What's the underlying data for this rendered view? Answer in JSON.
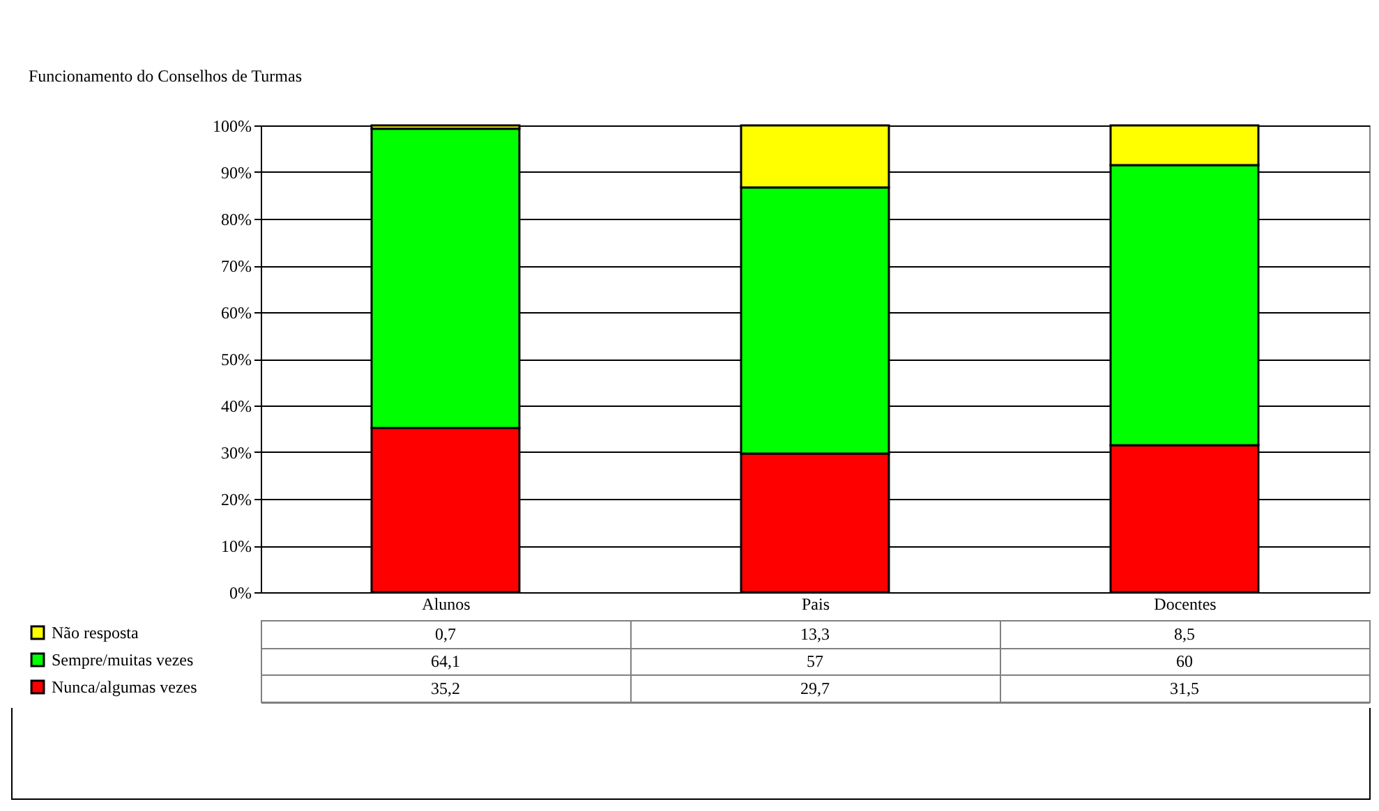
{
  "chart_data": {
    "type": "bar",
    "title": "Funcionamento do Conselhos de Turmas",
    "categories": [
      "Alunos",
      "Pais",
      "Docentes"
    ],
    "stacked": true,
    "legend": "bottom left",
    "grid": "y",
    "ylim": [
      0,
      100
    ],
    "yticks": [
      {
        "value": 0,
        "label": "0%"
      },
      {
        "value": 10,
        "label": "10%"
      },
      {
        "value": 20,
        "label": "20%"
      },
      {
        "value": 30,
        "label": "30%"
      },
      {
        "value": 40,
        "label": "40%"
      },
      {
        "value": 50,
        "label": "50%"
      },
      {
        "value": 60,
        "label": "60%"
      },
      {
        "value": 70,
        "label": "70%"
      },
      {
        "value": 80,
        "label": "80%"
      },
      {
        "value": 90,
        "label": "90%"
      },
      {
        "value": 100,
        "label": "100%"
      }
    ],
    "series": [
      {
        "name": "Nunca/algumas vezes",
        "color": "#ff0000",
        "values": [
          35.2,
          29.7,
          31.5
        ],
        "value_labels": [
          "35,2",
          "29,7",
          "31,5"
        ]
      },
      {
        "name": "Sempre/muitas vezes",
        "color": "#00ff00",
        "values": [
          64.1,
          57,
          60
        ],
        "value_labels": [
          "64,1",
          "57",
          "60"
        ]
      },
      {
        "name": "Não resposta",
        "color": "#ffff00",
        "values": [
          0.7,
          13.3,
          8.5
        ],
        "value_labels": [
          "0,7",
          "13,3",
          "8,5"
        ]
      }
    ]
  }
}
